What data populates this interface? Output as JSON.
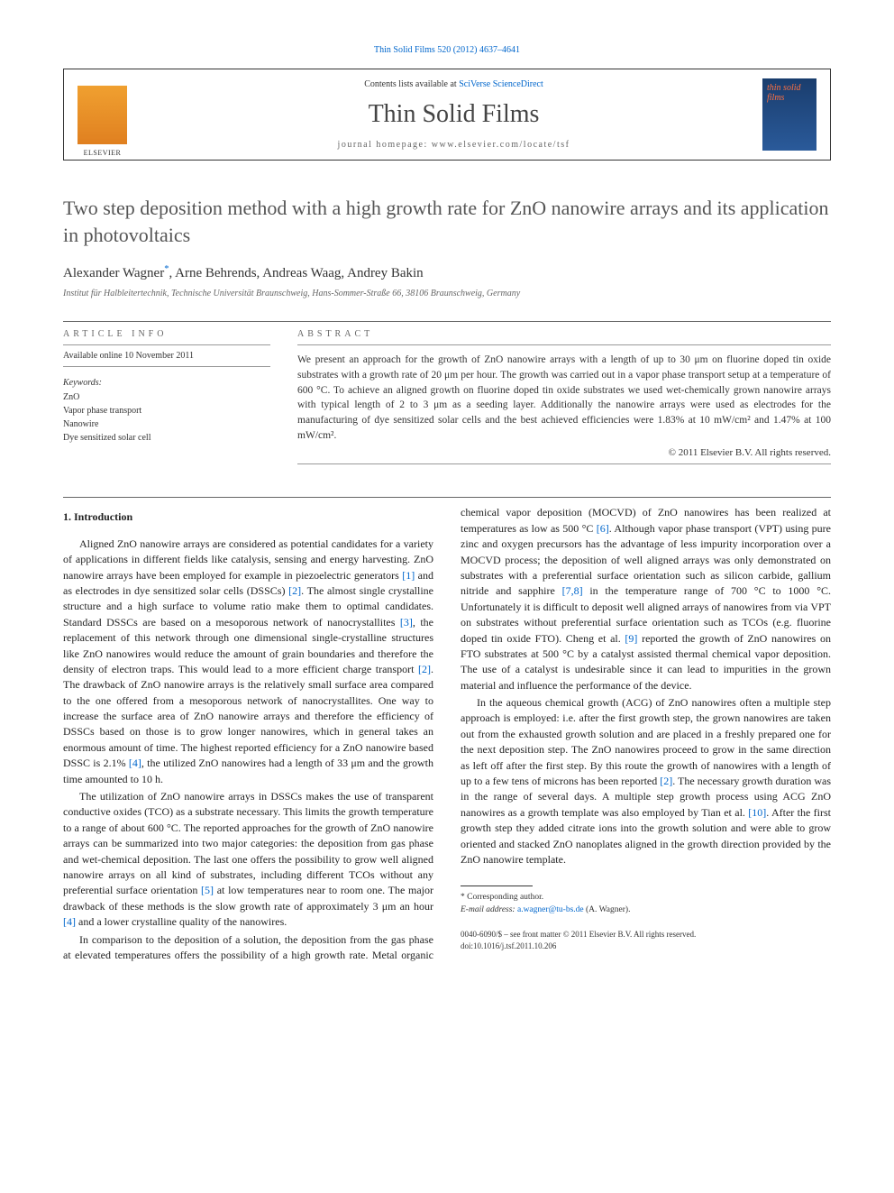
{
  "top_link": "Thin Solid Films 520 (2012) 4637–4641",
  "header": {
    "contents_prefix": "Contents lists available at ",
    "contents_link": "SciVerse ScienceDirect",
    "journal": "Thin Solid Films",
    "homepage_label": "journal homepage: www.elsevier.com/locate/tsf",
    "cover_text": "thin solid films"
  },
  "title": "Two step deposition method with a high growth rate for ZnO nanowire arrays and its application in photovoltaics",
  "authors_html": "Alexander Wagner",
  "author_mark": "*",
  "authors_rest": ", Arne Behrends, Andreas Waag, Andrey Bakin",
  "affiliation": "Institut für Halbleitertechnik, Technische Universität Braunschweig, Hans-Sommer-Straße 66, 38106 Braunschweig, Germany",
  "article_info": {
    "heading": "ARTICLE INFO",
    "available": "Available online 10 November 2011",
    "keywords_label": "Keywords:",
    "keywords": [
      "ZnO",
      "Vapor phase transport",
      "Nanowire",
      "Dye sensitized solar cell"
    ]
  },
  "abstract": {
    "heading": "ABSTRACT",
    "text": "We present an approach for the growth of ZnO nanowire arrays with a length of up to 30 μm on fluorine doped tin oxide substrates with a growth rate of 20 μm per hour. The growth was carried out in a vapor phase transport setup at a temperature of 600 °C. To achieve an aligned growth on fluorine doped tin oxide substrates we used wet-chemically grown nanowire arrays with typical length of 2 to 3 μm as a seeding layer. Additionally the nanowire arrays were used as electrodes for the manufacturing of dye sensitized solar cells and the best achieved efficiencies were 1.83% at 10 mW/cm² and 1.47% at 100 mW/cm².",
    "copyright": "© 2011 Elsevier B.V. All rights reserved."
  },
  "body": {
    "section_1_heading": "1. Introduction",
    "p1a": "Aligned ZnO nanowire arrays are considered as potential candidates for a variety of applications in different fields like catalysis, sensing and energy harvesting. ZnO nanowire arrays have been employed for example in piezoelectric generators ",
    "r1": "[1]",
    "p1b": " and as electrodes in dye sensitized solar cells (DSSCs) ",
    "r2": "[2]",
    "p1c": ". The almost single crystalline structure and a high surface to volume ratio make them to optimal candidates. Standard DSSCs are based on a mesoporous network of nanocrystallites ",
    "r3": "[3]",
    "p1d": ", the replacement of this network through one dimensional single-crystalline structures like ZnO nanowires would reduce the amount of grain boundaries and therefore the density of electron traps. This would lead to a more efficient charge transport ",
    "r2b": "[2]",
    "p1e": ". The drawback of ZnO nanowire arrays is the relatively small surface area compared to the one offered from a mesoporous network of nanocrystallites. One way to increase the surface area of ZnO nanowire arrays and therefore the efficiency of DSSCs based on those is to grow longer nanowires, which in general takes an enormous amount of time. The highest reported efficiency for a ZnO nanowire based DSSC is 2.1% ",
    "r4": "[4]",
    "p1f": ", the utilized ZnO nanowires had a length of 33 μm and the growth time amounted to 10 h.",
    "p2a": "The utilization of ZnO nanowire arrays in DSSCs makes the use of transparent conductive oxides (TCO) as a substrate necessary. This limits the growth temperature to a range of about 600 °C. The reported approaches for the growth of ZnO nanowire arrays can be summarized into two major categories: the deposition from gas phase and wet-chemical deposition. The last one offers the possibility to grow well aligned nanowire arrays on all kind of substrates, including different TCOs without any preferential surface orientation ",
    "r5": "[5]",
    "p2b": " at low temperatures near to room one. The major drawback of these methods is the slow growth rate of approximately 3 μm an hour ",
    "r4b": "[4]",
    "p2c": " and a lower crystalline quality of the nanowires.",
    "p3a": "In comparison to the deposition of a solution, the deposition from the gas phase at elevated temperatures offers the possibility of a high growth rate. Metal organic chemical vapor deposition (MOCVD) of ZnO nanowires has been realized at temperatures as low as 500 °C ",
    "r6": "[6]",
    "p3b": ". Although vapor phase transport (VPT) using pure zinc and oxygen precursors has the advantage of less impurity incorporation over a MOCVD process; the deposition of well aligned arrays was only demonstrated on substrates with a preferential surface orientation such as silicon carbide, gallium nitride and sapphire ",
    "r78": "[7,8]",
    "p3c": " in the temperature range of 700 °C to 1000 °C. Unfortunately it is difficult to deposit well aligned arrays of nanowires from via VPT on substrates without preferential surface orientation such as TCOs (e.g. fluorine doped tin oxide FTO). Cheng et al. ",
    "r9": "[9]",
    "p3d": " reported the growth of ZnO nanowires on FTO substrates at 500 °C by a catalyst assisted thermal chemical vapor deposition. The use of a catalyst is undesirable since it can lead to impurities in the grown material and influence the performance of the device.",
    "p4a": "In the aqueous chemical growth (ACG) of ZnO nanowires often a multiple step approach is employed: i.e. after the first growth step, the grown nanowires are taken out from the exhausted growth solution and are placed in a freshly prepared one for the next deposition step. The ZnO nanowires proceed to grow in the same direction as left off after the first step. By this route the growth of nanowires with a length of up to a few tens of microns has been reported ",
    "r2c": "[2]",
    "p4b": ". The necessary growth duration was in the range of several days. A multiple step growth process using ACG ZnO nanowires as a growth template was also employed by Tian et al. ",
    "r10": "[10]",
    "p4c": ". After the first growth step they added citrate ions into the growth solution and were able to grow oriented and stacked ZnO nanoplates aligned in the growth direction provided by the ZnO nanowire template."
  },
  "footnote": {
    "corr": "* Corresponding author.",
    "email_label": "E-mail address: ",
    "email": "a.wagner@tu-bs.de",
    "email_suffix": " (A. Wagner)."
  },
  "bottom": {
    "line1": "0040-6090/$ – see front matter © 2011 Elsevier B.V. All rights reserved.",
    "line2": "doi:10.1016/j.tsf.2011.10.206"
  }
}
